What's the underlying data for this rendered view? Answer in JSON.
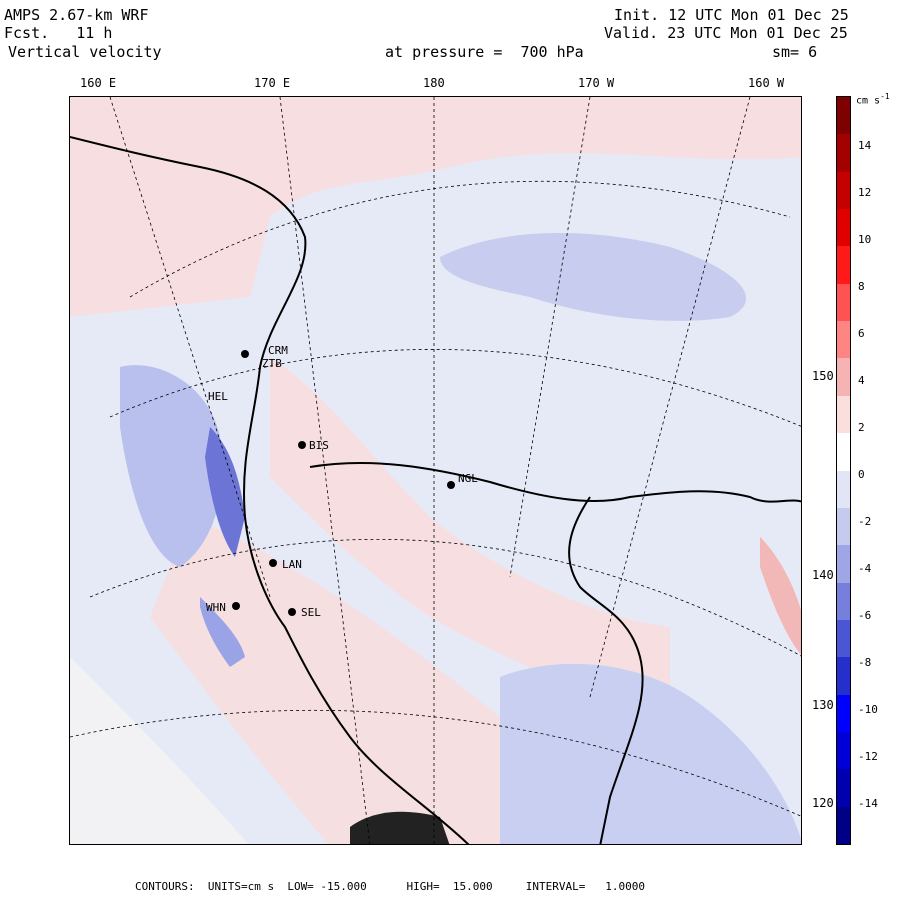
{
  "header": {
    "model": "AMPS 2.67-km WRF",
    "fcst": "Fcst.   11 h",
    "field": "Vertical velocity",
    "init": "Init. 12 UTC Mon 01 Dec 25",
    "valid": "Valid. 23 UTC Mon 01 Dec 25",
    "level": "at pressure =  700 hPa",
    "smooth": "sm= 6"
  },
  "lon_labels": [
    "160 E",
    "170 E",
    "180",
    "170 W",
    "160 W"
  ],
  "lat_labels": [
    "150 W",
    "140 W",
    "130 W",
    "120 W"
  ],
  "stations": [
    "CRM",
    "ZTB",
    "HEL",
    "BIS",
    "NGL",
    "LAN",
    "WHN",
    "SEL"
  ],
  "colorbar": {
    "unit": "cm s",
    "unit_exp": "-1",
    "ticks": [
      "14",
      "12",
      "10",
      "8",
      "6",
      "4",
      "2",
      "0",
      "-2",
      "-4",
      "-6",
      "-8",
      "-10",
      "-12",
      "-14"
    ],
    "colors": [
      "#7f0000",
      "#a30000",
      "#c40000",
      "#e00000",
      "#ff1a1a",
      "#ff5252",
      "#ff8585",
      "#f6b3b3",
      "#fbdede",
      "#ffffff",
      "#e2e5f6",
      "#c5cbee",
      "#9fa6e5",
      "#7680dc",
      "#4a56d3",
      "#2530cc",
      "#0000ff",
      "#0000d6",
      "#0000ae",
      "#000086"
    ]
  },
  "footer": {
    "text": "CONTOURS:  UNITS=cm s  LOW= -15.000      HIGH=  15.000     INTERVAL=   1.0000",
    "units_exp": "-1"
  }
}
